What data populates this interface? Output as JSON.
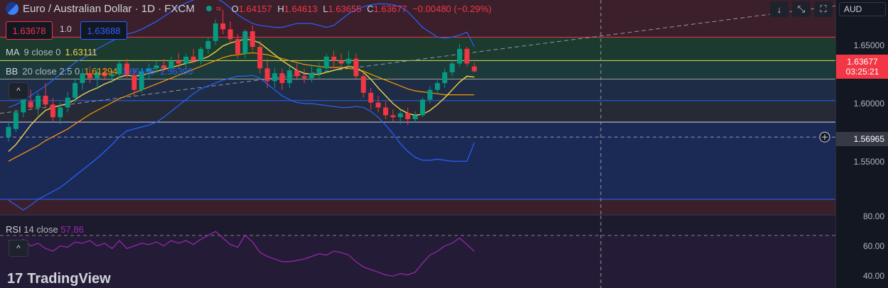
{
  "header": {
    "symbol": "Euro / Australian Dollar · 1D · FXCM",
    "ohlc": {
      "o_label": "O",
      "o": "1.64157",
      "h_label": "H",
      "h": "1.64613",
      "l_label": "L",
      "l": "1.63655",
      "c_label": "C",
      "c": "1.63677",
      "change": "−0.00480 (−0.29%)"
    },
    "wave_glyph": "≈"
  },
  "trade": {
    "sell_price": "1.63678",
    "spread": "1.0",
    "buy_price": "1.63688"
  },
  "indicators": {
    "ma": {
      "name": "MA",
      "params": "9 close 0",
      "value": "1.63111",
      "color": "#f0d24b"
    },
    "bb": {
      "name": "BB",
      "params": "20 close 2.5 0",
      "mid": "1.61294",
      "upper": "1.66198",
      "lower": "1.56390",
      "mid_color": "#ff9800",
      "band_color": "#2962ff"
    },
    "rsi": {
      "name": "RSI",
      "params": "14 close",
      "value": "57.86",
      "color": "#9c27b0"
    }
  },
  "price_axis": {
    "currency": "AUD",
    "ticks": [
      "1.65000",
      "1.60000",
      "1.55000"
    ],
    "current_price": "1.63677",
    "countdown": "03:25:21",
    "crosshair_price": "1.56965",
    "rsi_ticks": [
      "80.00",
      "60.00",
      "40.00"
    ]
  },
  "toolbar": {
    "down_arrow": "↓",
    "collapse_icon": "⤡",
    "fullscreen_icon": "⛶"
  },
  "collapse": {
    "glyph": "^"
  },
  "brand": {
    "logo_mark": "17",
    "name": "TradingView"
  },
  "colors": {
    "up": "#089981",
    "down": "#f23645",
    "background": "#131722"
  },
  "chart_data": {
    "type": "candlestick",
    "ylim": [
      1.49,
      1.71
    ],
    "candles": [
      [
        1.57,
        1.585,
        1.565,
        1.58
      ],
      [
        1.578,
        1.598,
        1.575,
        1.595
      ],
      [
        1.595,
        1.612,
        1.59,
        1.608
      ],
      [
        1.606,
        1.618,
        1.598,
        1.6
      ],
      [
        1.6,
        1.615,
        1.592,
        1.612
      ],
      [
        1.612,
        1.625,
        1.6,
        1.603
      ],
      [
        1.603,
        1.61,
        1.585,
        1.59
      ],
      [
        1.59,
        1.605,
        1.583,
        1.6
      ],
      [
        1.6,
        1.616,
        1.595,
        1.61
      ],
      [
        1.61,
        1.63,
        1.605,
        1.625
      ],
      [
        1.625,
        1.64,
        1.618,
        1.635
      ],
      [
        1.635,
        1.642,
        1.625,
        1.63
      ],
      [
        1.63,
        1.64,
        1.62,
        1.636
      ],
      [
        1.636,
        1.64,
        1.628,
        1.632
      ],
      [
        1.632,
        1.638,
        1.625,
        1.634
      ],
      [
        1.634,
        1.648,
        1.63,
        1.645
      ],
      [
        1.645,
        1.65,
        1.63,
        1.633
      ],
      [
        1.633,
        1.64,
        1.612,
        1.618
      ],
      [
        1.618,
        1.64,
        1.615,
        1.637
      ],
      [
        1.637,
        1.645,
        1.628,
        1.64
      ],
      [
        1.64,
        1.648,
        1.635,
        1.643
      ],
      [
        1.643,
        1.65,
        1.636,
        1.64
      ],
      [
        1.64,
        1.652,
        1.636,
        1.648
      ],
      [
        1.648,
        1.656,
        1.64,
        1.645
      ],
      [
        1.645,
        1.655,
        1.64,
        1.652
      ],
      [
        1.652,
        1.66,
        1.645,
        1.648
      ],
      [
        1.648,
        1.662,
        1.644,
        1.66
      ],
      [
        1.66,
        1.672,
        1.655,
        1.668
      ],
      [
        1.668,
        1.69,
        1.664,
        1.686
      ],
      [
        1.686,
        1.7,
        1.675,
        1.68
      ],
      [
        1.68,
        1.688,
        1.665,
        1.67
      ],
      [
        1.67,
        1.675,
        1.65,
        1.655
      ],
      [
        1.655,
        1.68,
        1.65,
        1.678
      ],
      [
        1.678,
        1.684,
        1.658,
        1.662
      ],
      [
        1.662,
        1.668,
        1.635,
        1.64
      ],
      [
        1.64,
        1.65,
        1.62,
        1.627
      ],
      [
        1.627,
        1.64,
        1.62,
        1.635
      ],
      [
        1.635,
        1.64,
        1.618,
        1.625
      ],
      [
        1.625,
        1.642,
        1.62,
        1.638
      ],
      [
        1.638,
        1.645,
        1.628,
        1.632
      ],
      [
        1.632,
        1.64,
        1.625,
        1.63
      ],
      [
        1.63,
        1.644,
        1.626,
        1.635
      ],
      [
        1.635,
        1.646,
        1.63,
        1.64
      ],
      [
        1.64,
        1.655,
        1.635,
        1.652
      ],
      [
        1.652,
        1.658,
        1.64,
        1.648
      ],
      [
        1.648,
        1.655,
        1.64,
        1.645
      ],
      [
        1.645,
        1.658,
        1.642,
        1.65
      ],
      [
        1.65,
        1.655,
        1.628,
        1.632
      ],
      [
        1.632,
        1.638,
        1.61,
        1.615
      ],
      [
        1.615,
        1.62,
        1.598,
        1.605
      ],
      [
        1.605,
        1.612,
        1.595,
        1.6
      ],
      [
        1.6,
        1.606,
        1.588,
        1.592
      ],
      [
        1.592,
        1.598,
        1.585,
        1.59
      ],
      [
        1.59,
        1.598,
        1.583,
        1.594
      ],
      [
        1.594,
        1.6,
        1.582,
        1.588
      ],
      [
        1.588,
        1.596,
        1.584,
        1.592
      ],
      [
        1.592,
        1.61,
        1.59,
        1.608
      ],
      [
        1.608,
        1.622,
        1.604,
        1.618
      ],
      [
        1.618,
        1.628,
        1.614,
        1.625
      ],
      [
        1.625,
        1.64,
        1.62,
        1.636
      ],
      [
        1.636,
        1.648,
        1.632,
        1.645
      ],
      [
        1.645,
        1.665,
        1.642,
        1.66
      ],
      [
        1.66,
        1.662,
        1.642,
        1.645
      ],
      [
        1.642,
        1.646,
        1.636,
        1.637
      ]
    ],
    "ma9": [
      1.555,
      1.562,
      1.572,
      1.582,
      1.59,
      1.597,
      1.6,
      1.602,
      1.604,
      1.608,
      1.613,
      1.617,
      1.62,
      1.624,
      1.627,
      1.631,
      1.633,
      1.632,
      1.633,
      1.635,
      1.637,
      1.639,
      1.641,
      1.643,
      1.645,
      1.647,
      1.649,
      1.652,
      1.657,
      1.663,
      1.666,
      1.668,
      1.67,
      1.669,
      1.666,
      1.66,
      1.654,
      1.648,
      1.643,
      1.638,
      1.635,
      1.634,
      1.634,
      1.636,
      1.638,
      1.64,
      1.642,
      1.641,
      1.636,
      1.629,
      1.62,
      1.612,
      1.604,
      1.598,
      1.594,
      1.592,
      1.593,
      1.597,
      1.603,
      1.61,
      1.618,
      1.626,
      1.632,
      1.6311
    ],
    "bb_mid": [
      1.545,
      1.549,
      1.553,
      1.557,
      1.561,
      1.566,
      1.57,
      1.574,
      1.578,
      1.583,
      1.588,
      1.593,
      1.597,
      1.601,
      1.605,
      1.609,
      1.612,
      1.615,
      1.618,
      1.621,
      1.624,
      1.627,
      1.63,
      1.633,
      1.636,
      1.639,
      1.642,
      1.645,
      1.648,
      1.651,
      1.653,
      1.654,
      1.655,
      1.656,
      1.655,
      1.654,
      1.652,
      1.65,
      1.648,
      1.646,
      1.644,
      1.643,
      1.642,
      1.641,
      1.641,
      1.641,
      1.64,
      1.639,
      1.637,
      1.634,
      1.631,
      1.628,
      1.625,
      1.622,
      1.619,
      1.617,
      1.616,
      1.615,
      1.614,
      1.613,
      1.613,
      1.613,
      1.613,
      1.6129
    ],
    "bb_upper": [
      1.6,
      1.603,
      1.607,
      1.612,
      1.617,
      1.622,
      1.628,
      1.634,
      1.64,
      1.646,
      1.65,
      1.654,
      1.66,
      1.664,
      1.668,
      1.672,
      1.675,
      1.677,
      1.68,
      1.684,
      1.688,
      1.693,
      1.698,
      1.703,
      1.707,
      1.71,
      1.712,
      1.714,
      1.712,
      1.708,
      1.702,
      1.695,
      1.69,
      1.686,
      1.684,
      1.683,
      1.682,
      1.682,
      1.684,
      1.686,
      1.686,
      1.686,
      1.684,
      1.682,
      1.684,
      1.69,
      1.696,
      1.7,
      1.703,
      1.705,
      1.706,
      1.706,
      1.705,
      1.703,
      1.698,
      1.69,
      1.682,
      1.677,
      1.672,
      1.671,
      1.672,
      1.674,
      1.677,
      1.662
    ],
    "bb_lower": [
      1.505,
      1.5,
      1.495,
      1.5,
      1.506,
      1.51,
      1.514,
      1.518,
      1.524,
      1.53,
      1.536,
      1.542,
      1.548,
      1.555,
      1.562,
      1.57,
      1.576,
      1.578,
      1.58,
      1.582,
      1.585,
      1.59,
      1.596,
      1.602,
      1.608,
      1.614,
      1.619,
      1.622,
      1.625,
      1.628,
      1.63,
      1.632,
      1.632,
      1.633,
      1.63,
      1.624,
      1.618,
      1.612,
      1.608,
      1.605,
      1.604,
      1.604,
      1.603,
      1.602,
      1.601,
      1.6,
      1.6,
      1.601,
      1.6,
      1.596,
      1.59,
      1.582,
      1.573,
      1.563,
      1.555,
      1.549,
      1.546,
      1.546,
      1.547,
      1.546,
      1.545,
      1.545,
      1.545,
      1.5639
    ],
    "rsi": [
      66,
      63,
      67,
      62,
      64,
      60,
      58,
      62,
      61,
      65,
      64,
      66,
      62,
      64,
      60,
      66,
      60,
      62,
      64,
      63,
      65,
      62,
      66,
      64,
      66,
      63,
      67,
      70,
      73,
      68,
      63,
      61,
      70,
      65,
      57,
      54,
      52,
      50,
      50,
      51,
      52,
      54,
      56,
      55,
      58,
      57,
      55,
      50,
      46,
      44,
      42,
      40,
      39,
      41,
      40,
      42,
      49,
      55,
      58,
      62,
      64,
      68,
      63,
      57.86
    ]
  }
}
